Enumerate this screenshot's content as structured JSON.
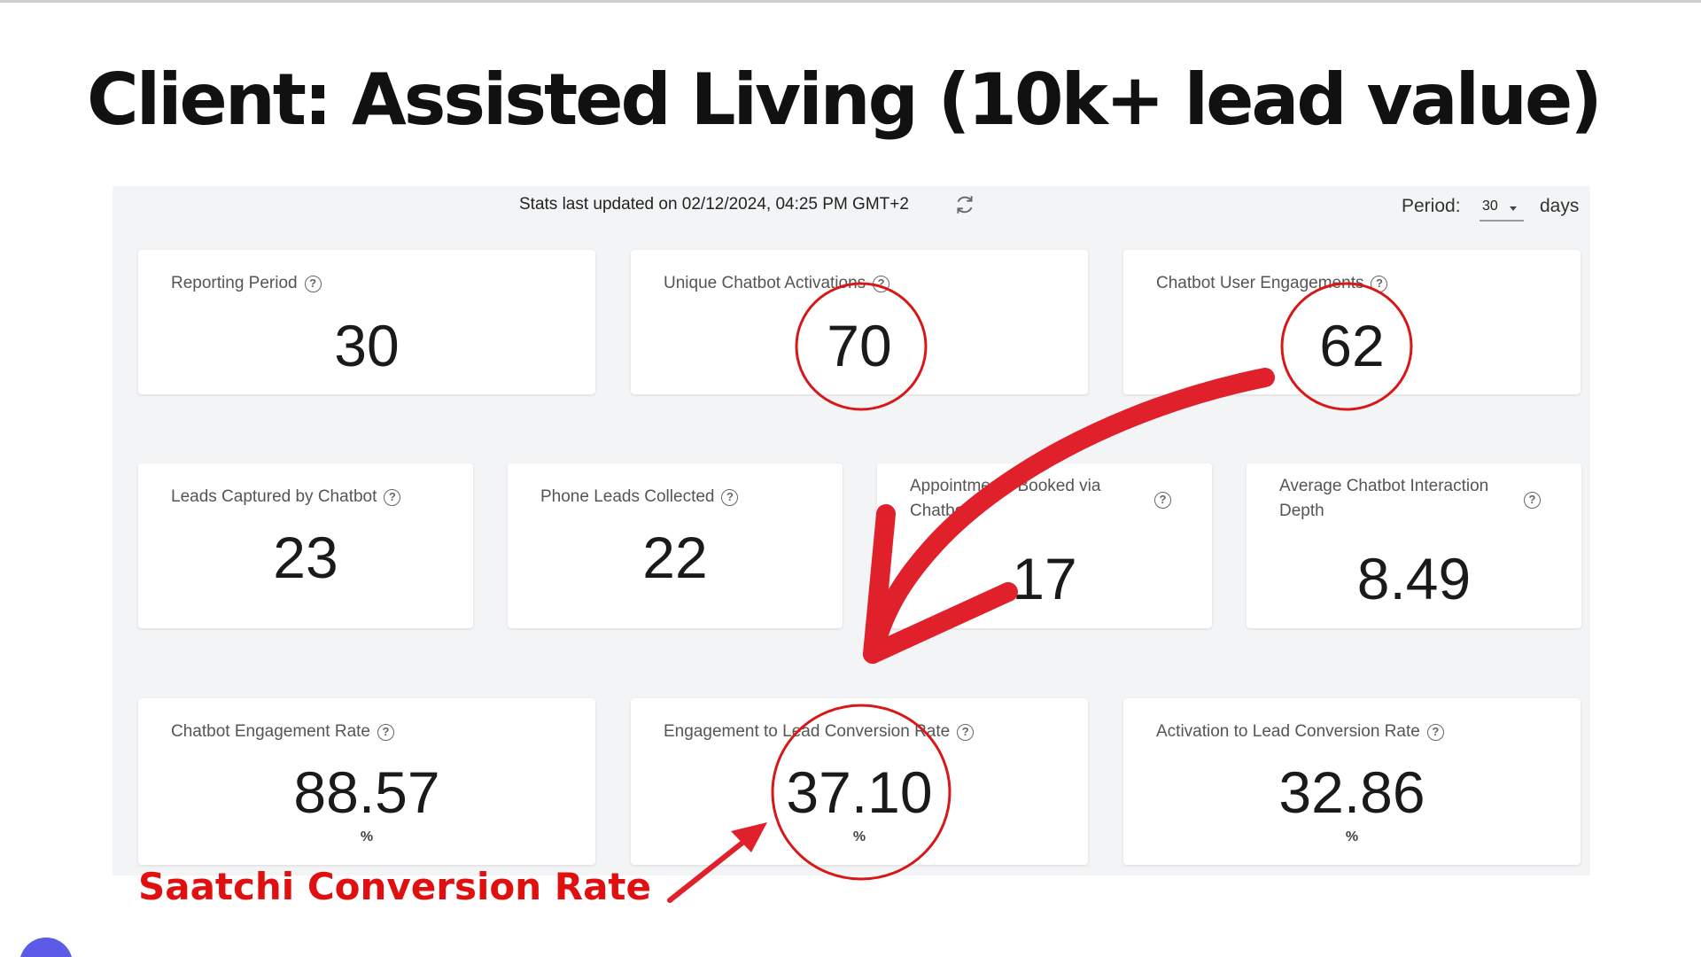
{
  "slide": {
    "title": "Client: Assisted Living (10k+ lead value)"
  },
  "dashboard": {
    "stats_updated": "Stats last updated on 02/12/2024, 04:25 PM GMT+2",
    "period_label": "Period:",
    "period_value": "30",
    "period_unit": "days",
    "help_glyph": "?",
    "cards": {
      "reporting_period": {
        "label": "Reporting Period",
        "value": "30"
      },
      "unique_activations": {
        "label": "Unique Chatbot Activations",
        "value": "70"
      },
      "user_engagements": {
        "label": "Chatbot User Engagements",
        "value": "62"
      },
      "leads_captured": {
        "label": "Leads Captured by Chatbot",
        "value": "23"
      },
      "phone_leads": {
        "label": "Phone Leads Collected",
        "value": "22"
      },
      "appointments": {
        "label": "Appointments Booked via Chatbot",
        "value": "17"
      },
      "interaction_depth": {
        "label": "Average Chatbot Interaction Depth",
        "value": "8.49"
      },
      "engagement_rate": {
        "label": "Chatbot Engagement Rate",
        "value": "88.57",
        "unit": "%"
      },
      "engagement_to_lead": {
        "label": "Engagement to Lead Conversion Rate",
        "value": "37.10",
        "unit": "%"
      },
      "activation_to_lead": {
        "label": "Activation to Lead Conversion Rate",
        "value": "32.86",
        "unit": "%"
      }
    }
  },
  "annotation": {
    "text": "Saatchi Conversion Rate",
    "color": "#e01010"
  },
  "icons": {
    "refresh": "refresh-icon",
    "help": "help-circle-icon",
    "dropdown": "chevron-down-icon"
  }
}
